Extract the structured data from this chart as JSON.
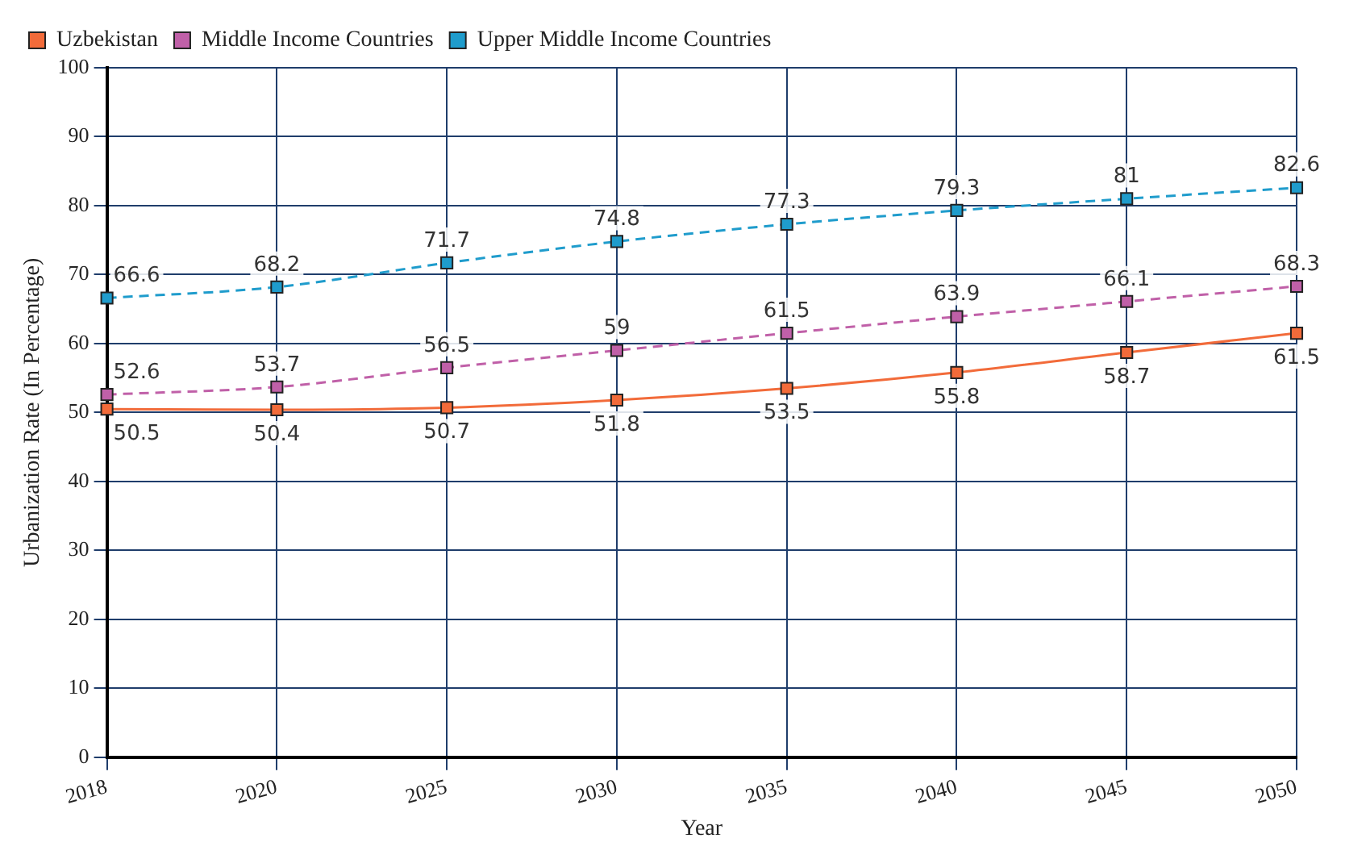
{
  "chart_data": {
    "type": "line",
    "xlabel": "Year",
    "ylabel": "Urbanization Rate (In Percentage)",
    "categories": [
      "2018",
      "2020",
      "2025",
      "2030",
      "2035",
      "2040",
      "2045",
      "2050"
    ],
    "series": [
      {
        "name": "Uzbekistan",
        "color": "#f26b3a",
        "line_style": "solid",
        "values": [
          50.5,
          50.4,
          50.7,
          51.8,
          53.5,
          55.8,
          58.7,
          61.5
        ]
      },
      {
        "name": "Middle Income Countries",
        "color": "#c060a8",
        "line_style": "dashed",
        "values": [
          52.6,
          53.7,
          56.5,
          59,
          61.5,
          63.9,
          66.1,
          68.3
        ]
      },
      {
        "name": "Upper Middle Income Countries",
        "color": "#1f9ccc",
        "line_style": "dashed",
        "values": [
          66.6,
          68.2,
          71.7,
          74.8,
          77.3,
          79.3,
          81,
          82.6
        ]
      }
    ],
    "ylim": [
      0,
      100
    ],
    "yticks": [
      0,
      10,
      20,
      30,
      40,
      50,
      60,
      70,
      80,
      90,
      100
    ],
    "grid": true,
    "legend": "top left",
    "marker": "square",
    "data_labels": true
  }
}
